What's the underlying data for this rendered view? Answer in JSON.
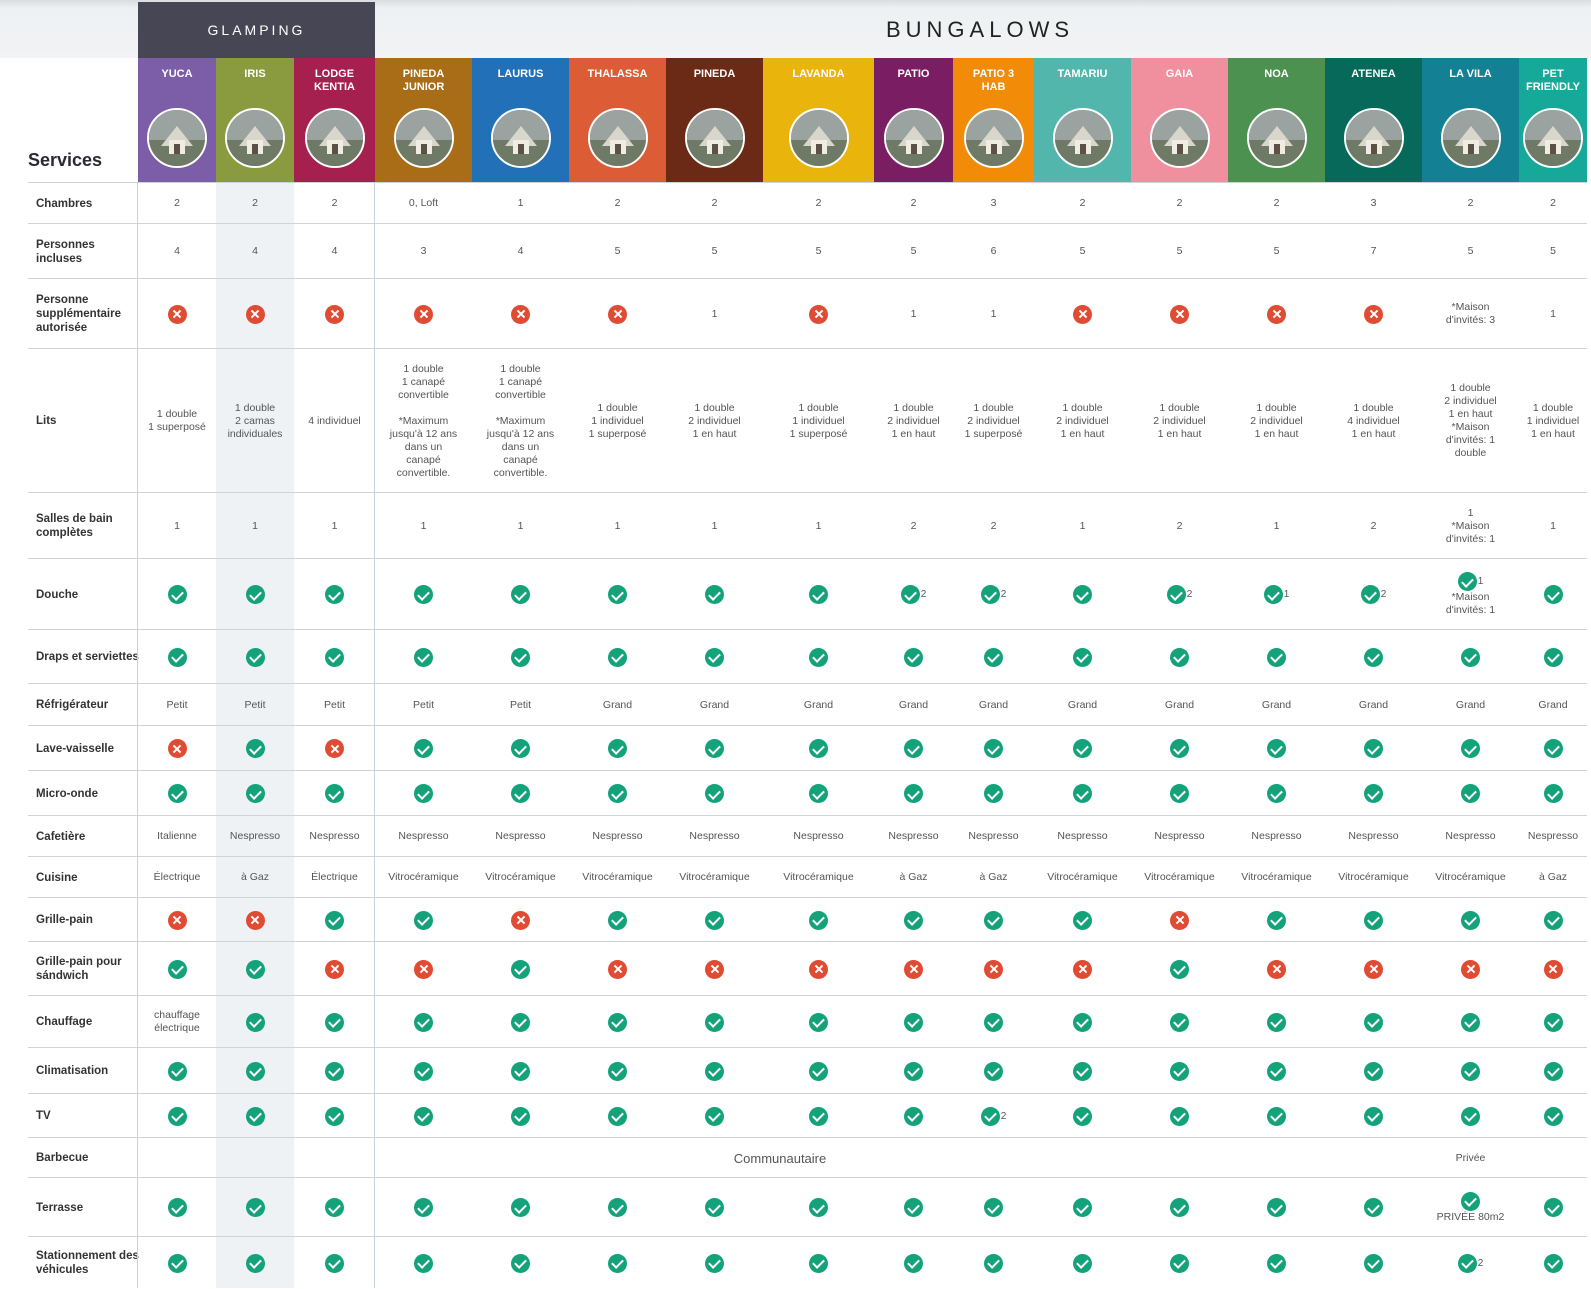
{
  "header": {
    "glamping_label": "GLAMPING",
    "bungalows_label": "BUNGALOWS",
    "services_title": "Services"
  },
  "columns": [
    {
      "name": "YUCA",
      "color": "#7b5ea7"
    },
    {
      "name": "IRIS",
      "color": "#8a9a3f"
    },
    {
      "name": "LODGE\nKENTIA",
      "color": "#a5204e"
    },
    {
      "name": "PINEDA\nJUNIOR",
      "color": "#a86d16"
    },
    {
      "name": "LAURUS",
      "color": "#2270b8"
    },
    {
      "name": "THALASSA",
      "color": "#dc5c36"
    },
    {
      "name": "PINEDA",
      "color": "#6b2a15"
    },
    {
      "name": "LAVANDA",
      "color": "#e9b50c"
    },
    {
      "name": "PATIO",
      "color": "#7b1d62"
    },
    {
      "name": "PATIO 3\nHAB",
      "color": "#f18b08"
    },
    {
      "name": "TAMARIU",
      "color": "#52b6ad"
    },
    {
      "name": "GAIA",
      "color": "#f0909f"
    },
    {
      "name": "NOA",
      "color": "#4d9151"
    },
    {
      "name": "ATENEA",
      "color": "#07695a"
    },
    {
      "name": "LA VILA",
      "color": "#138093"
    },
    {
      "name": "PET\nFRIENDLY",
      "color": "#16a898"
    }
  ],
  "rows": [
    {
      "label": "Chambres",
      "cells": [
        "2",
        "2",
        "2",
        "0, Loft",
        "1",
        "2",
        "2",
        "2",
        "2",
        "3",
        "2",
        "2",
        "2",
        "3",
        "2",
        "2"
      ]
    },
    {
      "label": "Personnes incluses",
      "cells": [
        "4",
        "4",
        "4",
        "3",
        "4",
        "5",
        "5",
        "5",
        "5",
        "6",
        "5",
        "5",
        "5",
        "7",
        "5",
        "5"
      ]
    },
    {
      "label": "Personne supplémentaire autorisée",
      "cells": [
        "no",
        "no",
        "no",
        "no",
        "no",
        "no",
        "1",
        "no",
        "1",
        "1",
        "no",
        "no",
        "no",
        "no",
        "*Maison\nd'invités: 3",
        "1"
      ]
    },
    {
      "label": "Lits",
      "cells": [
        "1 double\n1 superposé",
        "1 double\n2 camas\nindividuales",
        "4 individuel",
        "1 double\n1 canapé\nconvertible\n\n*Maximum\njusqu'à 12 ans\ndans un\ncanapé\nconvertible.",
        "1 double\n1 canapé\nconvertible\n\n*Maximum\njusqu'à 12 ans\ndans un\ncanapé\nconvertible.",
        "1 double\n1 individuel\n1 superposé",
        "1 double\n2 individuel\n1 en haut",
        "1 double\n1 individuel\n1 superposé",
        "1 double\n2 individuel\n1 en haut",
        "1 double\n2 individuel\n1 superposé",
        "1 double\n2 individuel\n1 en haut",
        "1 double\n2 individuel\n1 en haut",
        "1 double\n2 individuel\n1 en haut",
        "1 double\n4 individuel\n1 en haut",
        "1 double\n2 individuel\n1 en haut\n*Maison\nd'invités: 1\ndouble",
        "1 double\n1 individuel\n1 en haut"
      ]
    },
    {
      "label": "Salles de bain complètes",
      "cells": [
        "1",
        "1",
        "1",
        "1",
        "1",
        "1",
        "1",
        "1",
        "2",
        "2",
        "1",
        "2",
        "1",
        "2",
        "1\n*Maison\nd'invités: 1",
        "1"
      ]
    },
    {
      "label": "Douche",
      "cells": [
        "yes",
        "yes",
        "yes",
        "yes",
        "yes",
        "yes",
        "yes",
        "yes",
        "yes|2",
        "yes|2",
        "yes",
        "yes|2",
        "yes|1",
        "yes|2",
        "yes|1|*Maison\nd'invités: 1",
        "yes"
      ]
    },
    {
      "label": "Draps et serviettes",
      "cells": [
        "yes",
        "yes",
        "yes",
        "yes",
        "yes",
        "yes",
        "yes",
        "yes",
        "yes",
        "yes",
        "yes",
        "yes",
        "yes",
        "yes",
        "yes",
        "yes"
      ]
    },
    {
      "label": "Réfrigérateur",
      "cells": [
        "Petit",
        "Petit",
        "Petit",
        "Petit",
        "Petit",
        "Grand",
        "Grand",
        "Grand",
        "Grand",
        "Grand",
        "Grand",
        "Grand",
        "Grand",
        "Grand",
        "Grand",
        "Grand"
      ]
    },
    {
      "label": "Lave-vaisselle",
      "cells": [
        "no",
        "yes",
        "no",
        "yes",
        "yes",
        "yes",
        "yes",
        "yes",
        "yes",
        "yes",
        "yes",
        "yes",
        "yes",
        "yes",
        "yes",
        "yes"
      ]
    },
    {
      "label": "Micro-onde",
      "cells": [
        "yes",
        "yes",
        "yes",
        "yes",
        "yes",
        "yes",
        "yes",
        "yes",
        "yes",
        "yes",
        "yes",
        "yes",
        "yes",
        "yes",
        "yes",
        "yes"
      ]
    },
    {
      "label": "Cafetière",
      "cells": [
        "Italienne",
        "Nespresso",
        "Nespresso",
        "Nespresso",
        "Nespresso",
        "Nespresso",
        "Nespresso",
        "Nespresso",
        "Nespresso",
        "Nespresso",
        "Nespresso",
        "Nespresso",
        "Nespresso",
        "Nespresso",
        "Nespresso",
        "Nespresso"
      ]
    },
    {
      "label": "Cuisine",
      "cells": [
        "Électrique",
        "à Gaz",
        "Électrique",
        "Vitrocéramique",
        "Vitrocéramique",
        "Vitrocéramique",
        "Vitrocéramique",
        "Vitrocéramique",
        "à Gaz",
        "à Gaz",
        "Vitrocéramique",
        "Vitrocéramique",
        "Vitrocéramique",
        "Vitrocéramique",
        "Vitrocéramique",
        "à Gaz"
      ]
    },
    {
      "label": "Grille-pain",
      "cells": [
        "no",
        "no",
        "yes",
        "yes",
        "no",
        "yes",
        "yes",
        "yes",
        "yes",
        "yes",
        "yes",
        "no",
        "yes",
        "yes",
        "yes",
        "yes"
      ]
    },
    {
      "label": "Grille-pain pour sándwich",
      "cells": [
        "yes",
        "yes",
        "no",
        "no",
        "yes",
        "no",
        "no",
        "no",
        "no",
        "no",
        "no",
        "yes",
        "no",
        "no",
        "no",
        "no"
      ]
    },
    {
      "label": "Chauffage",
      "cells": [
        "chauffage\nélectrique",
        "yes",
        "yes",
        "yes",
        "yes",
        "yes",
        "yes",
        "yes",
        "yes",
        "yes",
        "yes",
        "yes",
        "yes",
        "yes",
        "yes",
        "yes"
      ]
    },
    {
      "label": "Climatisation",
      "cells": [
        "yes",
        "yes",
        "yes",
        "yes",
        "yes",
        "yes",
        "yes",
        "yes",
        "yes",
        "yes",
        "yes",
        "yes",
        "yes",
        "yes",
        "yes",
        "yes"
      ]
    },
    {
      "label": "TV",
      "cells": [
        "yes",
        "yes",
        "yes",
        "yes",
        "yes",
        "yes",
        "yes",
        "yes",
        "yes",
        "yes|2",
        "yes",
        "yes",
        "yes",
        "yes",
        "yes",
        "yes"
      ]
    },
    {
      "label": "Barbecue",
      "span_text": "Communautaire",
      "last_text": "Privée"
    },
    {
      "label": "Terrasse",
      "cells": [
        "yes",
        "yes",
        "yes",
        "yes",
        "yes",
        "yes",
        "yes",
        "yes",
        "yes",
        "yes",
        "yes",
        "yes",
        "yes",
        "yes",
        "yes||PRIVÉE 80m2",
        "yes"
      ]
    },
    {
      "label": "Stationnement des véhicules",
      "cells": [
        "yes",
        "yes",
        "yes",
        "yes",
        "yes",
        "yes",
        "yes",
        "yes",
        "yes",
        "yes",
        "yes",
        "yes",
        "yes",
        "yes",
        "yes|2",
        "yes"
      ]
    }
  ]
}
